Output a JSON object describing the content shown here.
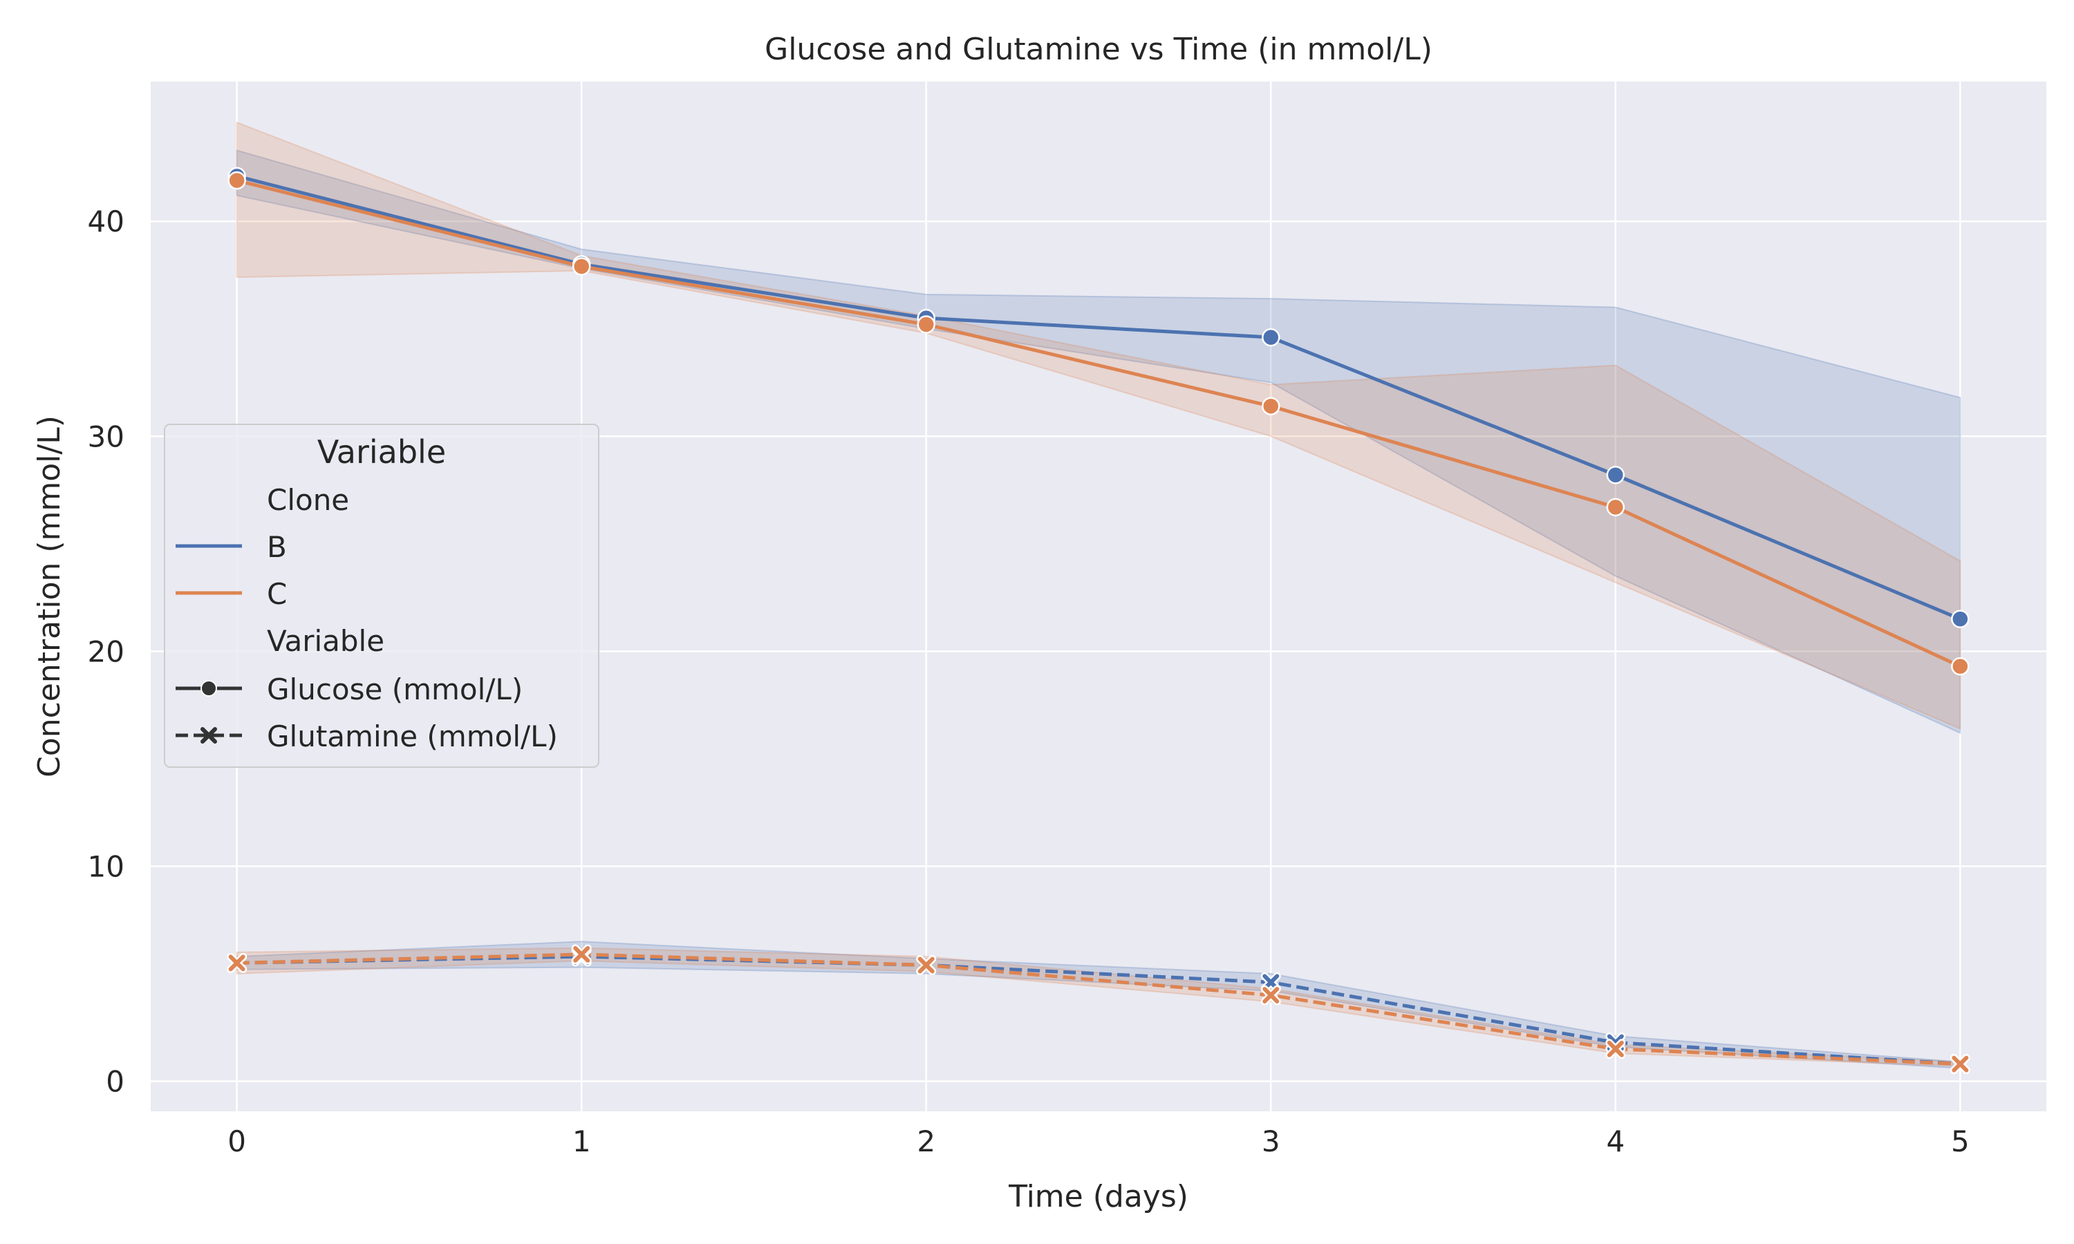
{
  "chart_data": {
    "type": "line",
    "title": "Glucose and Glutamine vs Time (in mmol/L)",
    "xlabel": "Time (days)",
    "ylabel": "Concentration (mmol/L)",
    "x": [
      0,
      1,
      2,
      3,
      4,
      5
    ],
    "xlim": [
      -0.25,
      5.25
    ],
    "ylim": [
      -1.4,
      46.5
    ],
    "xticks": [
      "0",
      "1",
      "2",
      "3",
      "4",
      "5"
    ],
    "yticks": [
      0,
      10,
      20,
      30,
      40
    ],
    "grid": true,
    "legend_placement": "center-left",
    "legend": {
      "title": "Variable",
      "hue_header": "Clone",
      "hue_entries": [
        {
          "label": "B",
          "color": "#4C72B0"
        },
        {
          "label": "C",
          "color": "#DD8452"
        }
      ],
      "style_header": "Variable",
      "style_entries": [
        {
          "label": "Glucose (mmol/L)",
          "marker": "circle",
          "dash": "solid"
        },
        {
          "label": "Glutamine (mmol/L)",
          "marker": "x",
          "dash": "dashed"
        }
      ]
    },
    "series": [
      {
        "clone": "B",
        "variable": "Glucose (mmol/L)",
        "color": "#4C72B0",
        "marker": "circle",
        "dash": "solid",
        "values": [
          42.1,
          38.0,
          35.5,
          34.6,
          28.2,
          21.5
        ],
        "ci_low": [
          41.2,
          37.8,
          35.0,
          32.5,
          23.5,
          16.2
        ],
        "ci_high": [
          43.3,
          38.7,
          36.6,
          36.4,
          36.0,
          31.8
        ]
      },
      {
        "clone": "C",
        "variable": "Glucose (mmol/L)",
        "color": "#DD8452",
        "marker": "circle",
        "dash": "solid",
        "values": [
          41.9,
          37.9,
          35.2,
          31.4,
          26.7,
          19.3
        ],
        "ci_low": [
          37.4,
          37.7,
          34.8,
          30.0,
          23.2,
          16.4
        ],
        "ci_high": [
          44.6,
          38.4,
          35.6,
          32.4,
          33.3,
          24.2
        ]
      },
      {
        "clone": "B",
        "variable": "Glutamine (mmol/L)",
        "color": "#4C72B0",
        "marker": "x",
        "dash": "dashed",
        "values": [
          5.5,
          5.8,
          5.4,
          4.6,
          1.8,
          0.8
        ],
        "ci_low": [
          5.2,
          5.3,
          5.0,
          4.2,
          1.6,
          0.6
        ],
        "ci_high": [
          5.8,
          6.5,
          5.7,
          5.0,
          2.1,
          0.9
        ]
      },
      {
        "clone": "C",
        "variable": "Glutamine (mmol/L)",
        "color": "#DD8452",
        "marker": "x",
        "dash": "dashed",
        "values": [
          5.5,
          5.9,
          5.4,
          4.0,
          1.5,
          0.8
        ],
        "ci_low": [
          5.0,
          5.6,
          5.1,
          3.7,
          1.3,
          0.7
        ],
        "ci_high": [
          6.0,
          6.2,
          5.8,
          4.3,
          1.7,
          0.9
        ]
      }
    ]
  }
}
